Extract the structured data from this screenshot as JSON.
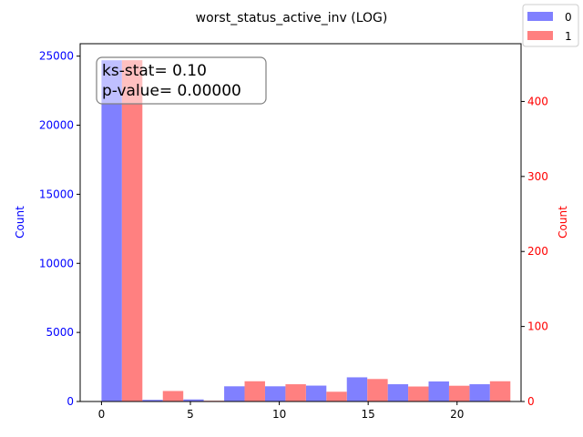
{
  "chart_data": {
    "type": "bar",
    "title": "worst_status_active_inv (LOG)",
    "xlabel": "",
    "xlim": [
      -1.2,
      23.6
    ],
    "x_ticks": [
      0,
      5,
      10,
      15,
      20
    ],
    "bin_edges": [
      0.0,
      2.3,
      4.6,
      6.9,
      9.2,
      11.5,
      13.8,
      16.1,
      18.4,
      20.7,
      23.0
    ],
    "series": [
      {
        "name": "0",
        "axis": "left",
        "color": "#8080ff",
        "values": [
          24700,
          120,
          150,
          1100,
          1100,
          1150,
          1750,
          1250,
          1450,
          1250
        ]
      },
      {
        "name": "1",
        "axis": "right",
        "color": "#ff8080",
        "values": [
          455,
          14,
          1,
          27,
          23,
          13,
          30,
          20,
          21,
          27
        ]
      }
    ],
    "y_left": {
      "label": "Count",
      "color": "#0000ff",
      "ylim": [
        0,
        25900
      ],
      "ticks": [
        0,
        5000,
        10000,
        15000,
        20000,
        25000
      ]
    },
    "y_right": {
      "label": "Count",
      "color": "#ff0000",
      "ylim": [
        0,
        477
      ],
      "ticks": [
        0,
        100,
        200,
        300,
        400
      ]
    },
    "annotation": {
      "line1": "ks-stat= 0.10",
      "line2": "p-value= 0.00000"
    },
    "legend": {
      "placement": "top-right",
      "entries": [
        "0",
        "1"
      ]
    }
  }
}
